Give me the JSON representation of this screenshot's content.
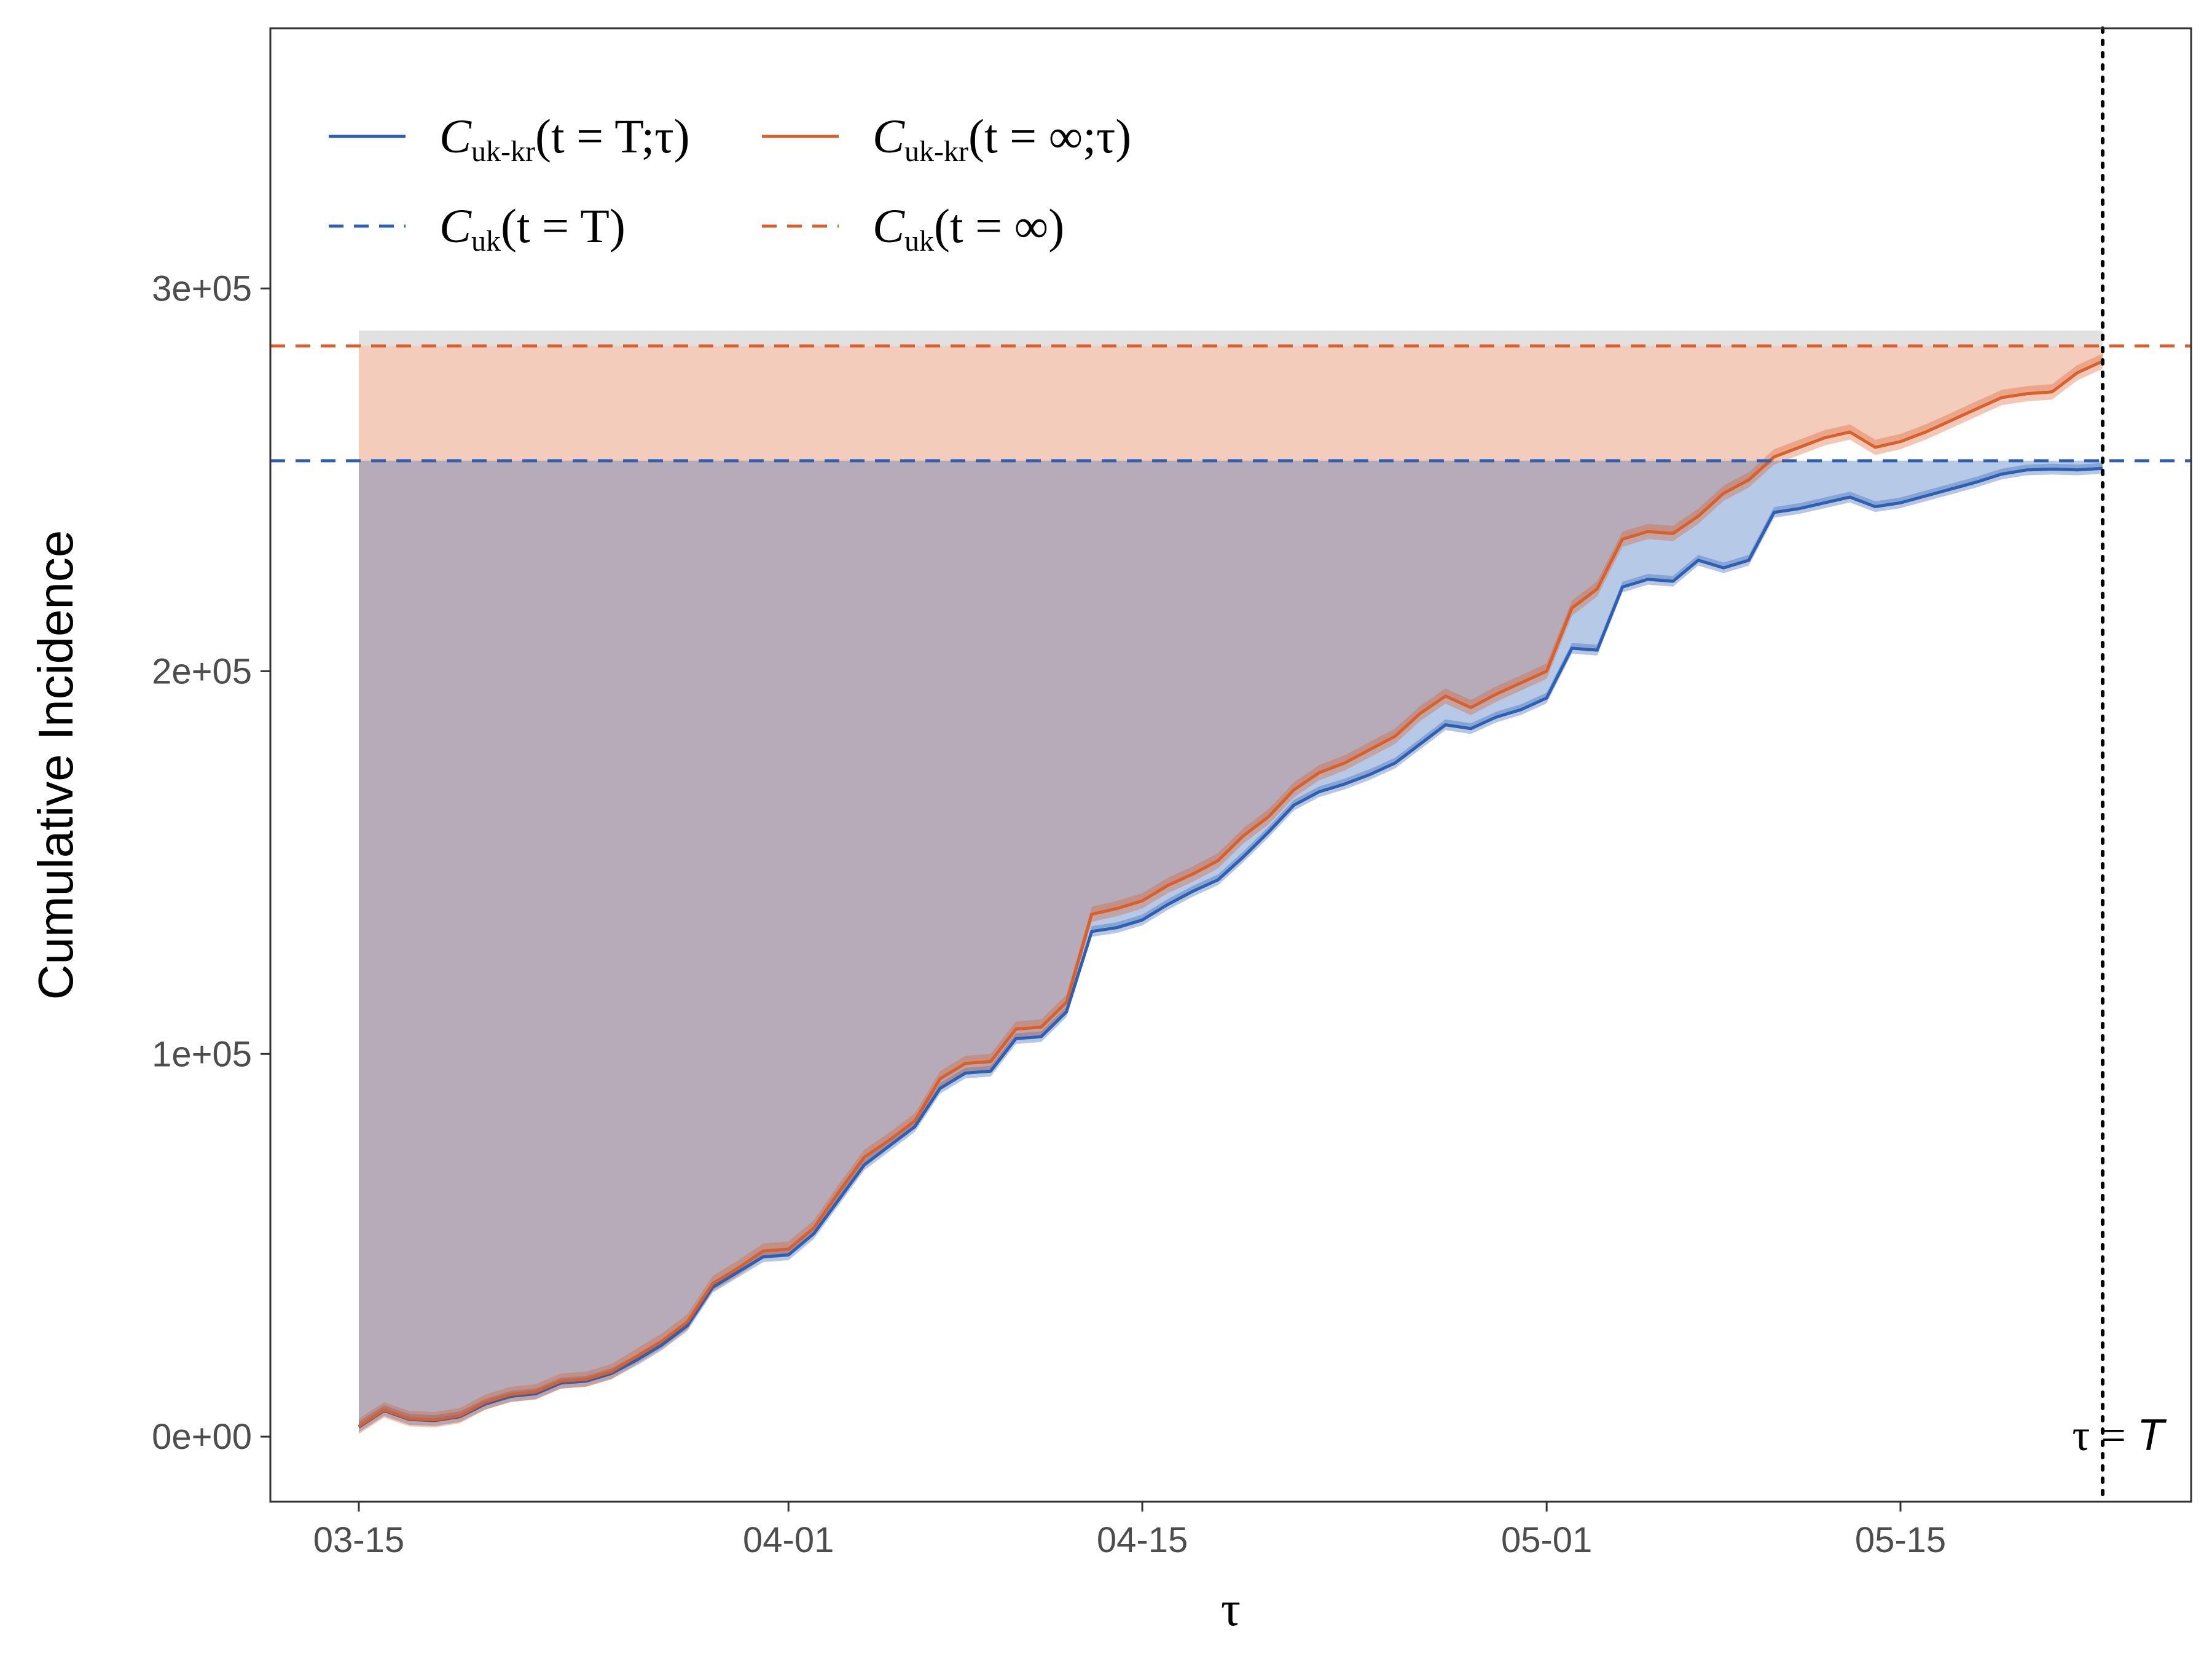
{
  "chart_data": {
    "type": "line",
    "xlabel": "τ",
    "ylabel": "Cumulative Incidence",
    "x_tick_labels": [
      "03-15",
      "04-01",
      "04-15",
      "05-01",
      "05-15"
    ],
    "x_tick_days": [
      0,
      17,
      31,
      47,
      61
    ],
    "y_tick_labels": [
      "0e+00",
      "1e+05",
      "2e+05",
      "3e+05"
    ],
    "y_tick_values": [
      0,
      100000,
      200000,
      300000
    ],
    "xlim_days": [
      -3.5,
      72.5
    ],
    "ylim": [
      -17000,
      368000
    ],
    "grid": false,
    "legend_position": "top-left",
    "x_days": [
      0,
      1,
      2,
      3,
      4,
      5,
      6,
      7,
      8,
      9,
      10,
      11,
      12,
      13,
      14,
      15,
      16,
      17,
      18,
      19,
      20,
      21,
      22,
      23,
      24,
      25,
      26,
      27,
      28,
      29,
      30,
      31,
      32,
      33,
      34,
      35,
      36,
      37,
      38,
      39,
      40,
      41,
      42,
      43,
      44,
      45,
      46,
      47,
      48,
      49,
      50,
      51,
      52,
      53,
      54,
      55,
      56,
      57,
      58,
      59,
      60,
      61,
      62,
      63,
      64,
      65,
      66,
      67,
      68,
      69
    ],
    "series": [
      {
        "name_main": "C",
        "name_sub": "uk-kr",
        "name_args": "(t = T;τ)",
        "color": "#2E5FB3",
        "dash": "solid",
        "values": [
          2500,
          6800,
          4500,
          4200,
          5200,
          8500,
          10500,
          11200,
          14000,
          14500,
          16500,
          20000,
          24000,
          29000,
          39000,
          43000,
          47000,
          47500,
          53000,
          62000,
          71000,
          76000,
          81000,
          91000,
          95000,
          95500,
          104000,
          104500,
          111000,
          132000,
          133000,
          135000,
          139000,
          142500,
          145500,
          151500,
          158000,
          165000,
          168500,
          170500,
          173000,
          176000,
          181000,
          186000,
          185000,
          188000,
          190000,
          193000,
          206000,
          205500,
          222000,
          224000,
          223500,
          229000,
          227000,
          229000,
          241500,
          242500,
          244000,
          245500,
          243000,
          244000,
          245800,
          247600,
          249400,
          251500,
          252600,
          252800,
          252600,
          253000
        ],
        "band": 1400
      },
      {
        "name_main": "C",
        "name_sub": "uk-kr",
        "name_args": "(t = ∞;τ)",
        "color": "#D95F2B",
        "dash": "solid",
        "values": [
          2700,
          7000,
          4700,
          4400,
          5500,
          9000,
          11000,
          11700,
          14500,
          15000,
          17000,
          21000,
          25000,
          30000,
          40000,
          44000,
          48500,
          49000,
          54500,
          64000,
          73000,
          77500,
          82500,
          93500,
          97500,
          98000,
          106500,
          107000,
          113500,
          136500,
          138000,
          140000,
          144000,
          147000,
          150500,
          157000,
          162000,
          169000,
          173500,
          176000,
          179500,
          183000,
          189000,
          193500,
          190500,
          194000,
          197000,
          200000,
          216500,
          221500,
          234500,
          236500,
          236000,
          240500,
          246500,
          250000,
          256000,
          258500,
          261000,
          262500,
          258500,
          260000,
          262500,
          265500,
          268500,
          271500,
          272500,
          273000,
          278000,
          281000
        ],
        "band": 2000
      },
      {
        "name_main": "C",
        "name_sub": "uk",
        "name_args": "(t = T)",
        "color": "#2E5FB3",
        "dash": "dashed",
        "value": 255000
      },
      {
        "name_main": "C",
        "name_sub": "uk",
        "name_args": "(t = ∞)",
        "color": "#D95F2B",
        "dash": "dashed",
        "value": 285000
      }
    ],
    "annotation": {
      "text_tau": "τ = ",
      "text_T": "T",
      "x_day": 69
    },
    "colors": {
      "blue": "#2E5FB3",
      "orange": "#D95F2B",
      "blue_fill": "#B6C9E6",
      "orange_fill": "#F4CCBC",
      "overlap_fill": "#B6ABB8",
      "grey_band": "#D9D9D9"
    }
  }
}
